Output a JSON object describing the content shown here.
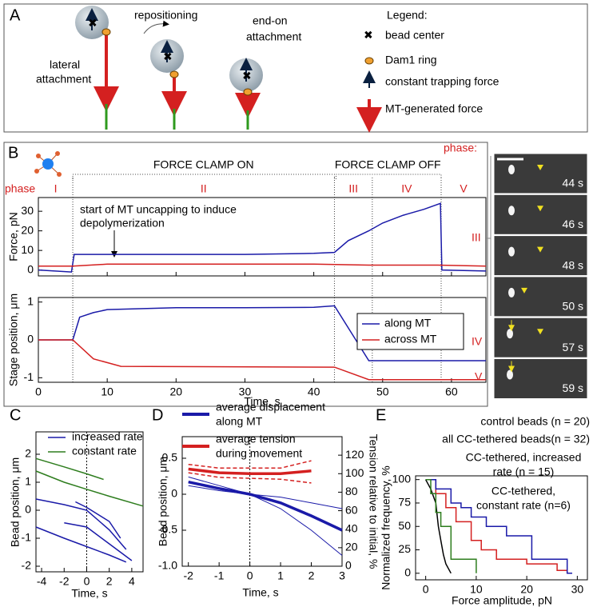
{
  "panel_a": {
    "label": "A",
    "lateral": [
      "lateral",
      "attachment"
    ],
    "repositioning": "repositioning",
    "end_on": [
      "end-on",
      "attachment"
    ],
    "legend_title": "Legend:",
    "legend": [
      "bead center",
      "Dam1 ring",
      "constant trapping force",
      "MT-generated force"
    ]
  },
  "panel_labels": {
    "b": "B",
    "c": "C",
    "d": "D",
    "e": "E"
  },
  "images": {
    "phase_label": "phase:",
    "phases": [
      "III",
      "IV",
      "V"
    ],
    "times": [
      "44 s",
      "46 s",
      "48 s",
      "50 s",
      "57 s",
      "59 s"
    ]
  },
  "chart_data": [
    {
      "type": "line",
      "ylabel": "Force, pN",
      "phase_label": "phase",
      "phases": [
        "I",
        "II",
        "III",
        "IV",
        "V"
      ],
      "boundaries": [
        5,
        43,
        48.5,
        58.5
      ],
      "clamp_on": "FORCE CLAMP ON",
      "clamp_off": "FORCE CLAMP OFF",
      "annotation": [
        "start of MT uncapping to induce",
        "depolymerization"
      ],
      "xlim": [
        0,
        65
      ],
      "xticks": [
        0,
        10,
        20,
        30,
        40,
        50,
        60
      ],
      "ylim": [
        -3,
        37
      ],
      "yticks": [
        0,
        10,
        20,
        30
      ],
      "series": [
        {
          "color": "#1a1aa8",
          "x": [
            0,
            4.8,
            5.2,
            10,
            20,
            30,
            40,
            43,
            45,
            48,
            50,
            53,
            56,
            58.4,
            58.6,
            65
          ],
          "values": [
            0,
            -1,
            8,
            8,
            8,
            8,
            8.5,
            9,
            15,
            20,
            24,
            28,
            31,
            34,
            0,
            -0.5
          ]
        },
        {
          "color": "#d42020",
          "x": [
            0,
            5,
            10,
            40,
            48,
            58,
            65
          ],
          "values": [
            2,
            2,
            3,
            3,
            2.5,
            2.5,
            2
          ]
        }
      ]
    },
    {
      "type": "line",
      "ylabel": "Stage position, μm",
      "xlabel": "Time, s",
      "legend": "lower right",
      "xlim": [
        0,
        65
      ],
      "xticks": [
        0,
        10,
        20,
        30,
        40,
        50,
        60
      ],
      "ylim": [
        -1.12,
        1.12
      ],
      "yticks": [
        -1,
        0,
        1
      ],
      "series": [
        {
          "name": "along MT",
          "color": "#1a1aa8",
          "x": [
            0,
            5,
            6,
            8,
            10,
            20,
            30,
            40,
            43,
            48,
            65
          ],
          "values": [
            0,
            0,
            0.6,
            0.72,
            0.8,
            0.85,
            0.85,
            0.86,
            0.9,
            -0.55,
            -0.55
          ]
        },
        {
          "name": "across MT",
          "color": "#d42020",
          "x": [
            0,
            5,
            8,
            12,
            43,
            48,
            65
          ],
          "values": [
            0,
            0,
            -0.5,
            -0.7,
            -0.72,
            -1.05,
            -1.05
          ]
        }
      ]
    },
    {
      "type": "line",
      "ylabel": "Bead position, μm",
      "xlabel": "Time, s",
      "vline": 0,
      "xlim": [
        -4.5,
        5
      ],
      "xticks": [
        -4,
        -2,
        0,
        2,
        4
      ],
      "ylim": [
        -2.2,
        2.8
      ],
      "yticks": [
        -2,
        -1,
        0,
        1,
        2
      ],
      "series": [
        {
          "name": "increased rate",
          "color": "#1a1aa8",
          "traces": [
            {
              "x": [
                -4.5,
                -2,
                0,
                2,
                3.5
              ],
              "values": [
                0.4,
                0.2,
                0,
                -0.7,
                -1.4
              ]
            },
            {
              "x": [
                -1,
                0,
                2,
                3
              ],
              "values": [
                0.3,
                0.1,
                -0.4,
                -1.0
              ]
            },
            {
              "x": [
                -2,
                0,
                2,
                4
              ],
              "values": [
                -0.45,
                -0.6,
                -1.2,
                -1.8
              ]
            },
            {
              "x": [
                -4.5,
                -2,
                0,
                2,
                3.5
              ],
              "values": [
                -0.6,
                -1,
                -1.3,
                -1.6,
                -1.85
              ]
            }
          ]
        },
        {
          "name": "constant rate",
          "color": "#2e7d1e",
          "traces": [
            {
              "x": [
                -4.5,
                -2,
                0,
                1.5
              ],
              "values": [
                1.85,
                1.55,
                1.3,
                1.1
              ]
            },
            {
              "x": [
                -4.5,
                -2,
                0,
                2,
                5
              ],
              "values": [
                1.4,
                1.0,
                0.75,
                0.5,
                0.15
              ]
            }
          ]
        }
      ]
    },
    {
      "type": "line",
      "ylabel": "Bead position, μm",
      "y2label": "Tension relative to initial, %",
      "xlabel": "Time, s",
      "vline": 0,
      "xlim": [
        -2.2,
        3
      ],
      "xticks": [
        -2,
        -1,
        0,
        1,
        2,
        3
      ],
      "ylim": [
        -1,
        0.8
      ],
      "yticks": [
        {
          "value": -1,
          "label": "-1.0"
        },
        -0.5,
        0,
        0.5
      ],
      "y2lim": [
        0,
        140
      ],
      "y2ticks": [
        0,
        20,
        40,
        60,
        80,
        100,
        120
      ],
      "series": [
        {
          "name": [
            "average displacement",
            "along MT"
          ],
          "color": "#1a1aa8",
          "traces": [
            {
              "style": "thick",
              "x": [
                -2,
                -1,
                0,
                1,
                2,
                3
              ],
              "values": [
                0.17,
                0.08,
                0,
                -0.12,
                -0.3,
                -0.5
              ]
            },
            {
              "style": "thin",
              "x": [
                -2,
                -1,
                0,
                1,
                2,
                3
              ],
              "values": [
                0.24,
                0.12,
                0,
                -0.04,
                -0.12,
                -0.2
              ]
            },
            {
              "style": "thin",
              "x": [
                -2,
                -1,
                0,
                1,
                2,
                3
              ],
              "values": [
                0.12,
                0.05,
                0,
                -0.2,
                -0.5,
                -0.85
              ]
            }
          ]
        },
        {
          "name": [
            "average tension",
            "during movement"
          ],
          "color": "#d42020",
          "axis": "y2",
          "traces": [
            {
              "style": "thick",
              "x": [
                -2,
                -1,
                0,
                1,
                2
              ],
              "values": [
                105,
                101,
                100,
                100,
                103
              ]
            },
            {
              "style": "dashed",
              "x": [
                -2,
                -1,
                0,
                1,
                2
              ],
              "values": [
                110,
                106,
                106,
                106,
                114
              ]
            },
            {
              "style": "dashed",
              "x": [
                -2,
                -1,
                0,
                1,
                2
              ],
              "values": [
                101,
                96,
                95,
                94,
                90
              ]
            }
          ]
        }
      ]
    },
    {
      "type": "line",
      "ylabel": "Normalized frequency, %",
      "xlabel": "Force amplitude, pN",
      "xlim": [
        -2,
        32
      ],
      "xticks": [
        0,
        10,
        20,
        30
      ],
      "ylim": [
        -7,
        104
      ],
      "yticks": [
        0,
        25,
        50,
        75,
        100
      ],
      "series": [
        {
          "name": "control beads (n = 20)",
          "color": "#000000",
          "x": [
            0,
            1,
            2,
            2.5,
            3,
            3.5,
            4,
            5
          ],
          "values": [
            100,
            90,
            75,
            50,
            35,
            20,
            10,
            0
          ]
        },
        {
          "name": "all CC-tethered beads(n = 32)",
          "color": "#d42020",
          "x": [
            0,
            2,
            2,
            4,
            4,
            6,
            6,
            9,
            9,
            11,
            11,
            14,
            14,
            20,
            20,
            26,
            26,
            28,
            28
          ],
          "values": [
            100,
            100,
            85,
            85,
            70,
            70,
            55,
            55,
            35,
            35,
            25,
            25,
            15,
            15,
            10,
            10,
            3,
            3,
            0
          ]
        },
        {
          "name": [
            "CC-tethered,  increased",
            "rate (n = 15)"
          ],
          "color": "#1a1aa8",
          "x": [
            0,
            2,
            2,
            5,
            5,
            7,
            7,
            9,
            9,
            12,
            12,
            16,
            16,
            21,
            21,
            28,
            28,
            29
          ],
          "values": [
            100,
            100,
            90,
            90,
            75,
            75,
            70,
            70,
            60,
            60,
            50,
            50,
            40,
            40,
            15,
            15,
            0,
            0
          ]
        },
        {
          "name": [
            "CC-tethered,",
            "constant rate (n=6)"
          ],
          "color": "#2e7d1e",
          "x": [
            0,
            1,
            1,
            2,
            2,
            3,
            3,
            5,
            5,
            10,
            10
          ],
          "values": [
            100,
            100,
            85,
            85,
            65,
            65,
            50,
            50,
            15,
            15,
            0
          ]
        }
      ]
    }
  ]
}
